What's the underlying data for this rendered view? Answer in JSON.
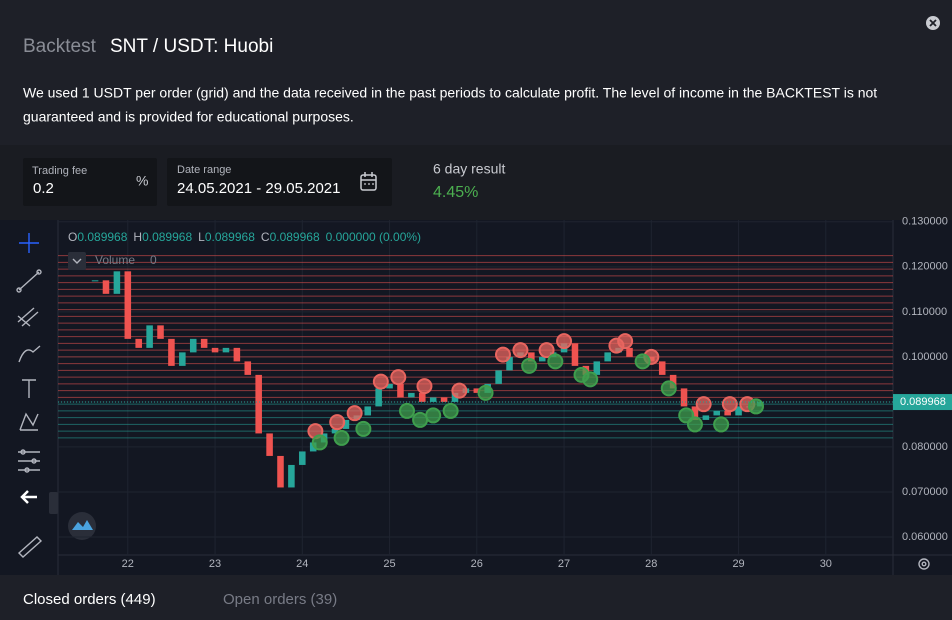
{
  "header": {
    "label": "Backtest",
    "title": "SNT / USDT: Huobi"
  },
  "description": [
    "We used 1 USDT per order (grid) and the data received in the past periods to calculate profit. The level of income in the BACKTEST is not",
    "guaranteed and is provided for educational purposes."
  ],
  "fields": {
    "trading_fee": {
      "label": "Trading fee",
      "value": "0.2",
      "unit": "%"
    },
    "date_range": {
      "label": "Date range",
      "value": "24.05.2021 - 29.05.2021"
    }
  },
  "result": {
    "label": "6 day result",
    "value": "4.45%"
  },
  "chart_data": {
    "type": "candlestick",
    "legend": {
      "items": [
        {
          "label": "O",
          "value": 0.089968
        },
        {
          "label": "H",
          "value": 0.089968
        },
        {
          "label": "L",
          "value": 0.089968
        },
        {
          "label": "C",
          "value": 0.089968
        }
      ],
      "change": "0.000000 (0.00%)"
    },
    "volume": {
      "label": "Volume",
      "value": 0
    },
    "x": [
      21.625,
      21.75,
      21.875,
      22,
      22.125,
      22.25,
      22.375,
      22.5,
      22.625,
      22.75,
      22.875,
      23,
      23.125,
      23.25,
      23.375,
      23.5,
      23.625,
      23.75,
      23.875,
      24,
      24.125,
      24.25,
      24.375,
      24.5,
      24.625,
      24.75,
      24.875,
      25,
      25.125,
      25.25,
      25.375,
      25.5,
      25.625,
      25.75,
      25.875,
      26,
      26.125,
      26.25,
      26.375,
      26.5,
      26.625,
      26.75,
      26.875,
      27,
      27.125,
      27.25,
      27.375,
      27.5,
      27.625,
      27.75,
      27.875,
      28,
      28.125,
      28.25,
      28.375,
      28.5,
      28.625,
      28.75,
      28.875,
      29,
      29.125,
      29.25
    ],
    "close": [
      0.117,
      0.114,
      0.119,
      0.104,
      0.102,
      0.107,
      0.104,
      0.098,
      0.101,
      0.104,
      0.102,
      0.101,
      0.102,
      0.099,
      0.096,
      0.083,
      0.078,
      0.071,
      0.076,
      0.079,
      0.081,
      0.083,
      0.084,
      0.086,
      0.087,
      0.089,
      0.093,
      0.094,
      0.091,
      0.092,
      0.09,
      0.091,
      0.09,
      0.092,
      0.093,
      0.092,
      0.094,
      0.097,
      0.1,
      0.101,
      0.099,
      0.1,
      0.101,
      0.103,
      0.098,
      0.096,
      0.099,
      0.101,
      0.102,
      0.1,
      0.1,
      0.099,
      0.096,
      0.093,
      0.089,
      0.086,
      0.087,
      0.088,
      0.087,
      0.089,
      0.089,
      0.089968
    ],
    "up_color": "#26a69a",
    "down_color": "#ef5350",
    "sells": {
      "color": "#e8655f",
      "x": [
        24.15,
        24.4,
        24.6,
        24.9,
        25.1,
        25.4,
        25.8,
        26.3,
        26.5,
        26.8,
        27,
        27.6,
        27.7,
        28,
        28.6,
        28.9,
        29.1
      ],
      "y": [
        0.0835,
        0.0855,
        0.0875,
        0.0945,
        0.0955,
        0.0935,
        0.0925,
        0.1005,
        0.1015,
        0.1015,
        0.1035,
        0.1025,
        0.1035,
        0.1,
        0.0895,
        0.0895,
        0.0895
      ]
    },
    "buys": {
      "color": "#3f9e4d",
      "x": [
        24.2,
        24.45,
        24.7,
        25.2,
        25.35,
        25.5,
        25.7,
        26.1,
        26.6,
        26.9,
        27.2,
        27.3,
        27.9,
        28.2,
        28.4,
        28.5,
        28.8,
        29.2
      ],
      "y": [
        0.081,
        0.082,
        0.084,
        0.088,
        0.086,
        0.087,
        0.088,
        0.092,
        0.098,
        0.099,
        0.096,
        0.095,
        0.099,
        0.093,
        0.087,
        0.085,
        0.085,
        0.089
      ]
    },
    "grid_levels": [
      0.082,
      0.0835,
      0.085,
      0.0865,
      0.088,
      0.0895,
      0.091,
      0.0925,
      0.094,
      0.0955,
      0.097,
      0.0985,
      0.1,
      0.1015,
      0.103,
      0.1045,
      0.106,
      0.1075,
      0.109,
      0.1105,
      0.112,
      0.1135,
      0.115,
      0.1165,
      0.118,
      0.1195,
      0.121,
      0.1225
    ],
    "last_price": {
      "value": 0.089968,
      "label": "0.089968"
    },
    "xlim": [
      21.2,
      30.77
    ],
    "xticks": [
      22,
      23,
      24,
      25,
      26,
      27,
      28,
      29,
      30
    ],
    "ylim": [
      0.056,
      0.1304
    ],
    "yticks": [
      {
        "value": 0.13,
        "label": "0.130000"
      },
      {
        "value": 0.12,
        "label": "0.120000"
      },
      {
        "value": 0.11,
        "label": "0.110000"
      },
      {
        "value": 0.1,
        "label": "0.100000"
      },
      {
        "value": 0.09,
        "label": "0.090000"
      },
      {
        "value": 0.08,
        "label": "0.080000"
      },
      {
        "value": 0.07,
        "label": "0.070000"
      },
      {
        "value": 0.06,
        "label": "0.060000"
      }
    ],
    "grid": true
  },
  "tabs": [
    "Closed orders (449)",
    "Open orders (39)"
  ]
}
